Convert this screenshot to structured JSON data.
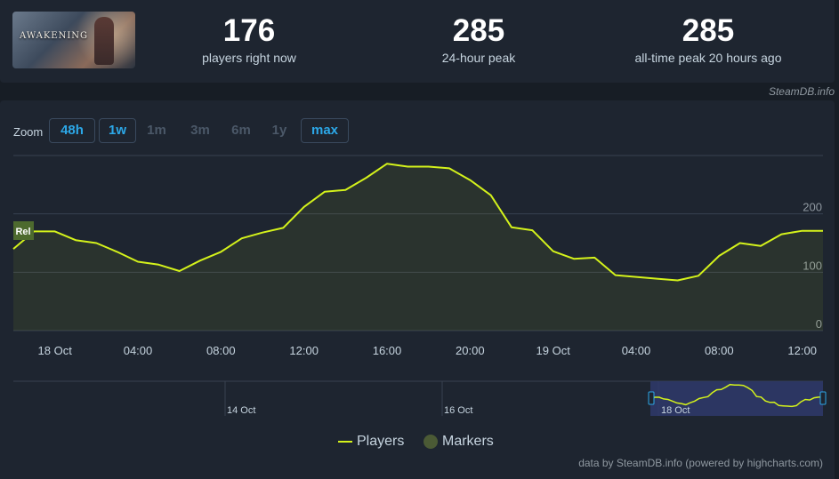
{
  "game": {
    "logo_text": "AWAKENING"
  },
  "stats": [
    {
      "value": "176",
      "label": "players right now"
    },
    {
      "value": "285",
      "label": "24-hour peak"
    },
    {
      "value": "285",
      "label": "all-time peak 20 hours ago"
    }
  ],
  "source_tag": "SteamDB.info",
  "zoom": {
    "label": "Zoom",
    "buttons": [
      {
        "label": "48h",
        "active": true
      },
      {
        "label": "1w",
        "active": true
      },
      {
        "label": "1m",
        "active": false
      },
      {
        "label": "3m",
        "active": false
      },
      {
        "label": "6m",
        "active": false
      },
      {
        "label": "1y",
        "active": false
      },
      {
        "label": "max",
        "active": true
      }
    ]
  },
  "release_flag": "Rel",
  "navigator": {
    "labels": [
      "14 Oct",
      "16 Oct",
      "18 Oct"
    ]
  },
  "legend": {
    "players": "Players",
    "markers": "Markers"
  },
  "credit": "data by SteamDB.info (powered by highcharts.com)",
  "colors": {
    "line": "#d4f21b",
    "grid": "#384150",
    "background": "#1e2530",
    "accent": "#2ca8e8"
  },
  "chart_data": {
    "type": "line",
    "series": [
      {
        "name": "Players",
        "x_hours": [
          0,
          1,
          2,
          3,
          4,
          5,
          6,
          7,
          8,
          9,
          10,
          11,
          12,
          13,
          14,
          15,
          16,
          17,
          18,
          19,
          20,
          21,
          22,
          23,
          24,
          25,
          26,
          27,
          28,
          29,
          30,
          31,
          32,
          33,
          34,
          35,
          36,
          37,
          38,
          39
        ],
        "values": [
          140,
          170,
          170,
          155,
          150,
          135,
          118,
          113,
          102,
          120,
          135,
          158,
          168,
          176,
          212,
          238,
          241,
          262,
          286,
          281,
          281,
          278,
          258,
          232,
          177,
          172,
          136,
          123,
          125,
          95,
          92,
          89,
          86,
          94,
          128,
          150,
          145,
          165,
          171,
          171
        ]
      }
    ],
    "x_ticks": [
      "18 Oct",
      "04:00",
      "08:00",
      "12:00",
      "16:00",
      "20:00",
      "19 Oct",
      "04:00",
      "08:00",
      "12:00"
    ],
    "y_ticks": [
      "0",
      "100",
      "200"
    ],
    "ylim": [
      0,
      300
    ],
    "grid": true,
    "legend_position": "bottom-center"
  }
}
